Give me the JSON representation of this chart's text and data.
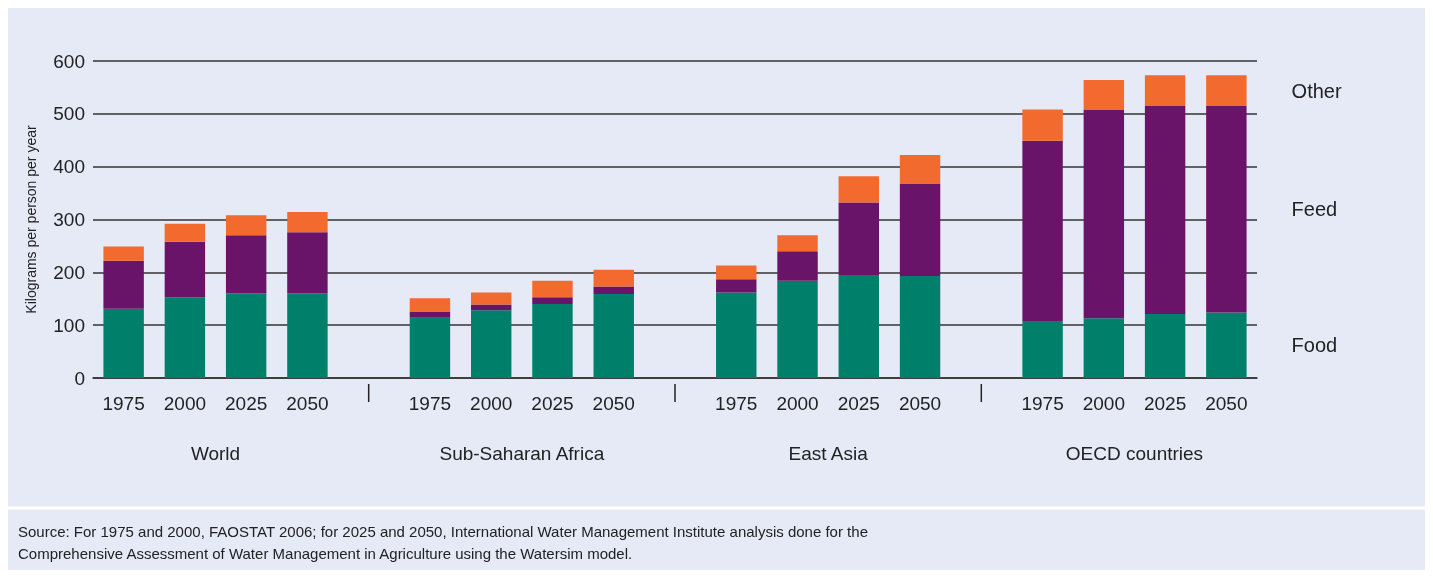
{
  "chart_data": {
    "type": "bar",
    "stacked": true,
    "ylabel": "Kilograms per person per year",
    "categories": [
      "1975",
      "2000",
      "2025",
      "2050",
      null,
      "1975",
      "2000",
      "2025",
      "2050",
      null,
      "1975",
      "2000",
      "2025",
      "2050",
      null,
      "1975",
      "2000",
      "2025",
      "2050"
    ],
    "series": [
      {
        "name": "Food",
        "color": "#00806a",
        "values": [
          131,
          153,
          160,
          160,
          null,
          114,
          128,
          140,
          159,
          null,
          162,
          184,
          195,
          193,
          null,
          108,
          113,
          121,
          124
        ]
      },
      {
        "name": "Feed",
        "color": "#6a1469",
        "values": [
          91,
          105,
          110,
          116,
          null,
          12,
          11,
          13,
          14,
          null,
          25,
          56,
          137,
          175,
          null,
          341,
          395,
          394,
          391
        ]
      },
      {
        "name": "Other",
        "color": "#f26a2e",
        "values": [
          27,
          34,
          38,
          38,
          null,
          25,
          23,
          31,
          32,
          null,
          26,
          30,
          50,
          54,
          null,
          59,
          56,
          58,
          58
        ]
      }
    ],
    "ylim": [
      0,
      600
    ],
    "yticks": [
      0,
      100,
      200,
      300,
      400,
      500,
      600
    ],
    "grid": "y",
    "legend": false,
    "annotations": [
      "World",
      "Sub-Saharan Africa",
      "East Asia",
      "OECD countries",
      "Source: For 1975 and 2000, FAOSTAT 2006; for 2025 and 2050, International Water Management Institute analysis done for the\nComprehensive Assessment of Water Management in Agriculture using the Watersim model."
    ]
  }
}
